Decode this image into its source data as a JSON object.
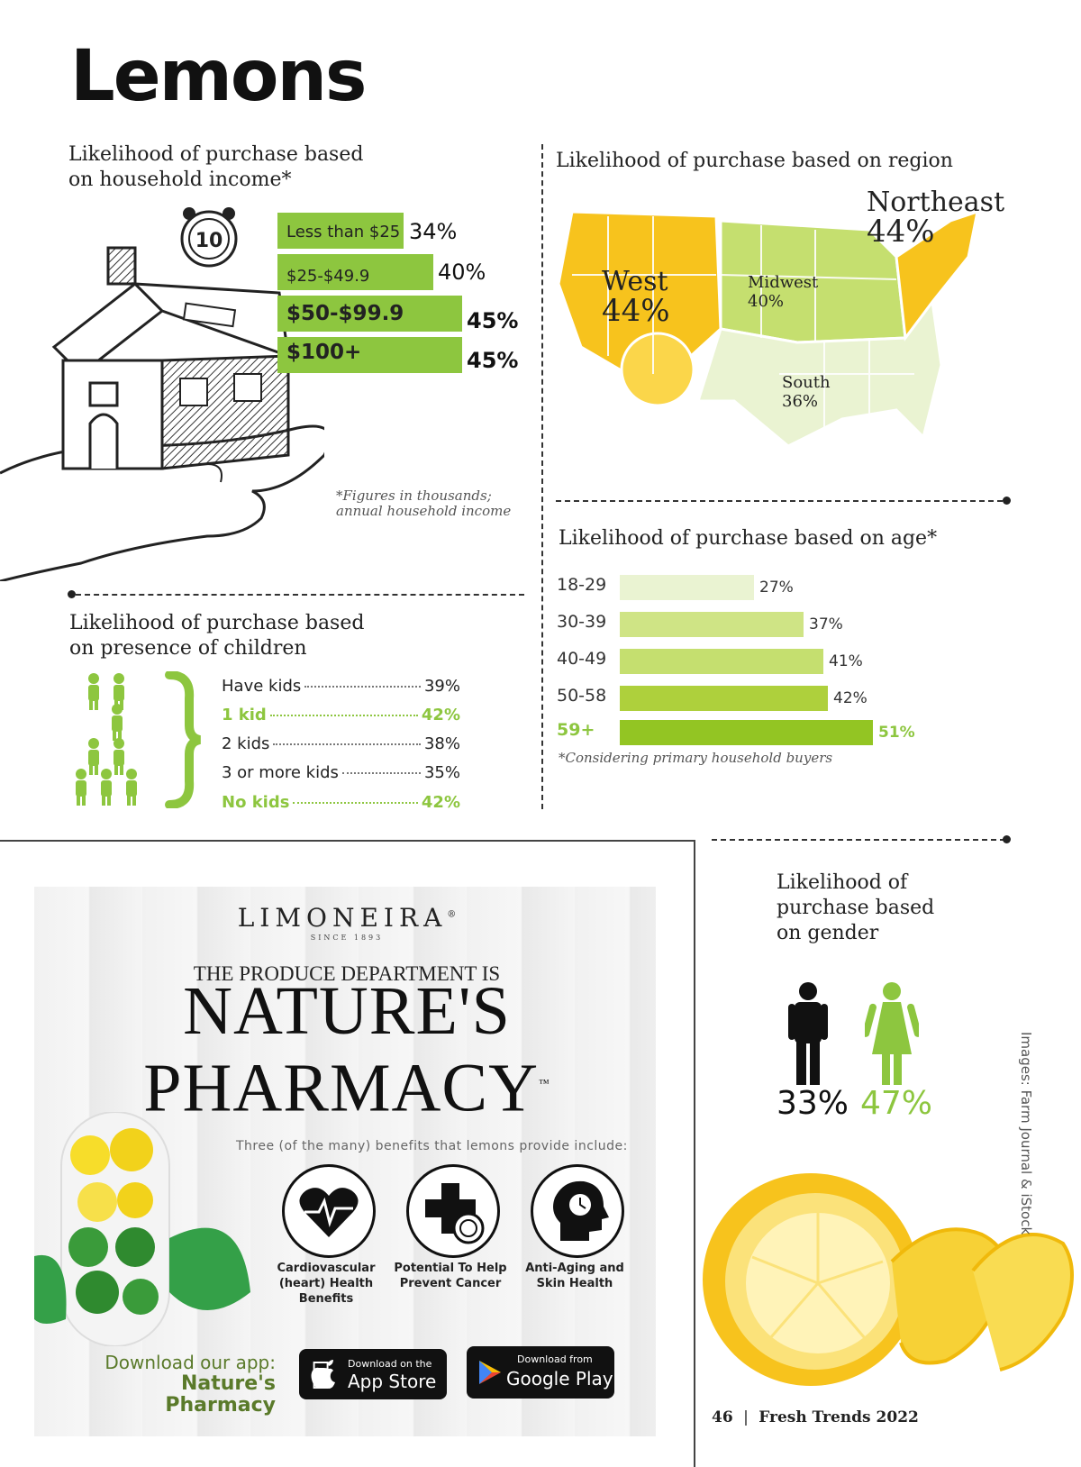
{
  "title": "Lemons",
  "income": {
    "heading_line1": "Likelihood of purchase based",
    "heading_line2": "on household income*",
    "clock_number": "10",
    "bars": [
      {
        "label": "Less than $25",
        "value": 34,
        "pct": "34%"
      },
      {
        "label": "$25-$49.9",
        "value": 40,
        "pct": "40%"
      },
      {
        "label": "$50-$99.9",
        "value": 45,
        "pct": "45%"
      },
      {
        "label": "$100+",
        "value": 45,
        "pct": "45%"
      }
    ],
    "footnote_line1": "*Figures in thousands;",
    "footnote_line2": "annual household income"
  },
  "region": {
    "heading": "Likelihood of purchase based on region",
    "west_name": "West",
    "west_pct": "44%",
    "northeast_name": "Northeast",
    "northeast_pct": "44%",
    "midwest_name": "Midwest",
    "midwest_pct": "40%",
    "south_name": "South",
    "south_pct": "36%"
  },
  "age": {
    "heading": "Likelihood of purchase based on age*",
    "footnote": "*Considering primary household buyers",
    "colors": [
      "#eaf3d2",
      "#cfe485",
      "#c5df6f",
      "#aed03c",
      "#93c523"
    ]
  },
  "chart_data": {
    "type": "bar",
    "title": "Likelihood of purchase based on age*",
    "categories": [
      "18-29",
      "30-39",
      "40-49",
      "50-58",
      "59+"
    ],
    "values": [
      27,
      37,
      41,
      42,
      51
    ],
    "value_labels": [
      "27%",
      "37%",
      "41%",
      "42%",
      "51%"
    ],
    "orientation": "horizontal",
    "xlim": [
      0,
      55
    ]
  },
  "children": {
    "heading_line1": "Likelihood of purchase based",
    "heading_line2": "on presence of children",
    "rows": [
      {
        "label": "Have kids",
        "pct": "39%"
      },
      {
        "label": "1 kid",
        "pct": "42%"
      },
      {
        "label": "2 kids",
        "pct": "38%"
      },
      {
        "label": "3 or more kids",
        "pct": "35%"
      },
      {
        "label": "No kids",
        "pct": "42%"
      }
    ]
  },
  "gender": {
    "heading_line1": "Likelihood of",
    "heading_line2": "purchase based",
    "heading_line3": "on gender",
    "male_pct": "33%",
    "female_pct": "47%"
  },
  "ad": {
    "brand": "LIMONEIRA",
    "brand_mark": "®",
    "since": "SINCE 1893",
    "tagline": "THE PRODUCE DEPARTMENT IS",
    "headline1": "NATURE'S",
    "headline2": "PHARMACY",
    "tm": "™",
    "benefits_intro": "Three (of the many) benefits that lemons provide include:",
    "benefits": [
      {
        "line1": "Cardiovascular",
        "line2": "(heart) Health Benefits"
      },
      {
        "line1": "Potential To Help",
        "line2": "Prevent Cancer"
      },
      {
        "line1": "Anti-Aging and",
        "line2": "Skin Health"
      }
    ],
    "download_line1": "Download our app:",
    "download_line2": "Nature's Pharmacy",
    "appstore_small": "Download on the",
    "appstore_big": "App Store",
    "gplay_small": "Download from",
    "gplay_big": "Google Play"
  },
  "credit": "Images: Farm Journal & iStock",
  "footer": {
    "page": "46",
    "sep": "|",
    "publication": "Fresh Trends 2022"
  },
  "colors": {
    "green": "#8dc63f",
    "lemon": "#f7c31d",
    "dark": "#222222"
  }
}
